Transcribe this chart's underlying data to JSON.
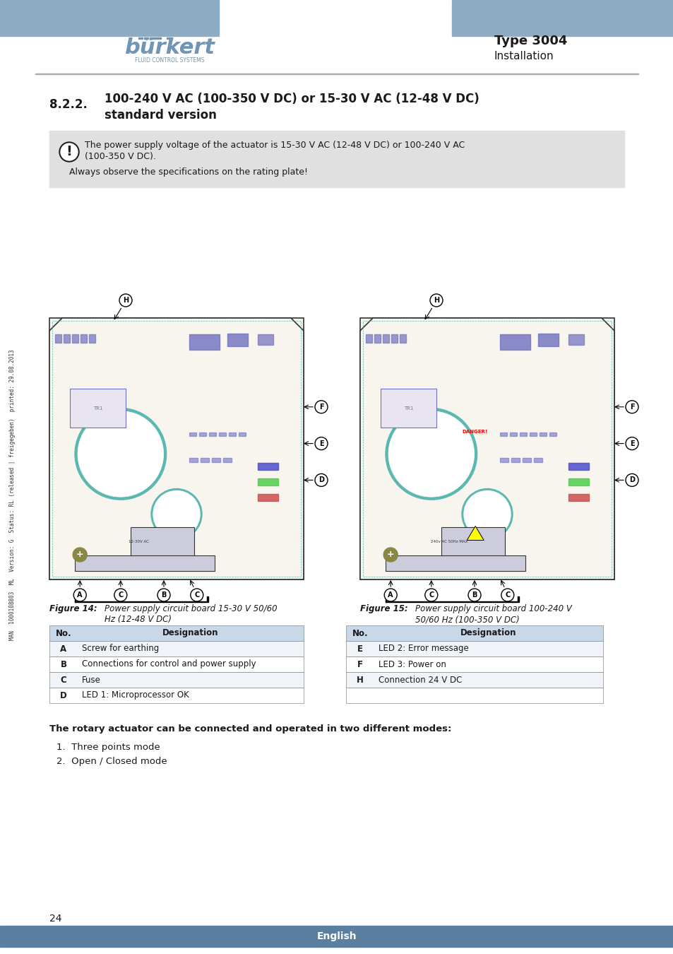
{
  "page_bg": "#ffffff",
  "header_bar_color": "#8eabc4",
  "header_bar_height": 0.038,
  "burkert_color": "#7095b5",
  "type_text": "Type 3004",
  "section_text": "Installation",
  "section_title": "8.2.2.    100-240 V AC (100-350 V DC) or 15-30 V AC (12-48 V DC)\n           standard version",
  "warning_bg": "#e0e0e0",
  "warning_text1": "The power supply voltage of the actuator is 15-30 V AC (12-48 V DC) or 100-240 V AC",
  "warning_text2": "(100-350 V DC).",
  "warning_text3": "Always observe the specifications on the rating plate!",
  "fig14_caption_title": "Figure 14:",
  "fig14_caption_text": "Power supply circuit board 15-30 V 50/60\nHz (12-48 V DC)",
  "fig15_caption_title": "Figure 15:",
  "fig15_caption_text": "Power supply circuit board 100-240 V\n50/60 Hz (100-350 V DC)",
  "table1_headers": [
    "No.",
    "Designation"
  ],
  "table1_rows": [
    [
      "A",
      "Screw for earthing"
    ],
    [
      "B",
      "Connections for control and power supply"
    ],
    [
      "C",
      "Fuse"
    ],
    [
      "D",
      "LED 1: Microprocessor OK"
    ]
  ],
  "table2_headers": [
    "No.",
    "Designation"
  ],
  "table2_rows": [
    [
      "E",
      "LED 2: Error message"
    ],
    [
      "F",
      "LED 3: Power on"
    ],
    [
      "H",
      "Connection 24 V DC"
    ],
    [
      "",
      ""
    ]
  ],
  "bottom_text1": "The rotary actuator can be connected and operated in two different modes:",
  "bottom_list": [
    "1.  Three points mode",
    "2.  Open / Closed mode"
  ],
  "page_number": "24",
  "footer_text": "English",
  "sidebar_text": "MAN  1000108803  ML  Version: G  Status: RL (released | freigegeben)  printed: 29.08.2013",
  "pcb_color": "#f5f0e8",
  "pcb_border": "#4a6fa8",
  "component_color": "#5a7ab8",
  "hole_color": "#b0c4d8"
}
